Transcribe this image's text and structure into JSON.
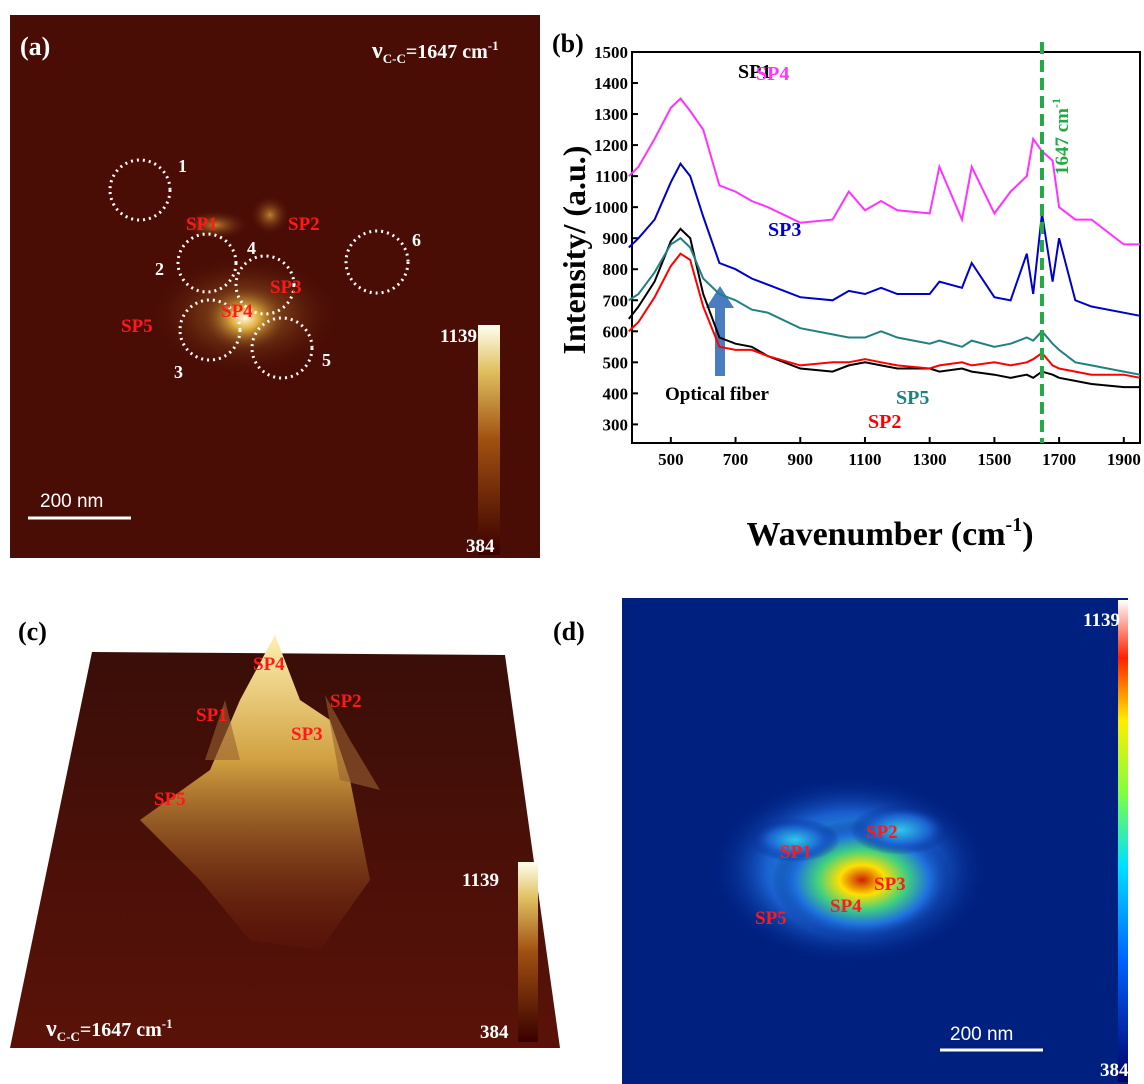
{
  "panel_a": {
    "label": "(a)",
    "annotation": {
      "symbol": "ν",
      "subscript": "C-C",
      "text": "=1647 cm",
      "superscript": "-1"
    },
    "circles": [
      "1",
      "2",
      "3",
      "4",
      "5",
      "6"
    ],
    "spots": [
      "SP1",
      "SP2",
      "SP3",
      "SP4",
      "SP5"
    ],
    "scale_bar": "200 nm",
    "colorbar": {
      "max": "1139",
      "min": "384"
    }
  },
  "chart_data": {
    "type": "line",
    "label": "(b)",
    "x_label": {
      "text": "Wavenumber (cm",
      "superscript": "-1",
      "end": ")"
    },
    "y_label": "Intensity/ (a.u.)",
    "x": [
      370,
      400,
      450,
      500,
      530,
      560,
      600,
      650,
      700,
      750,
      800,
      900,
      1000,
      1050,
      1100,
      1150,
      1200,
      1300,
      1330,
      1400,
      1430,
      1500,
      1550,
      1600,
      1620,
      1647,
      1680,
      1700,
      1750,
      1800,
      1900,
      1950
    ],
    "xlim": [
      380,
      1950
    ],
    "xticks": [
      500,
      700,
      900,
      1100,
      1300,
      1500,
      1700,
      1900
    ],
    "ylim": [
      240,
      1500
    ],
    "yticks": [
      300,
      400,
      500,
      600,
      700,
      800,
      900,
      1000,
      1100,
      1200,
      1300,
      1400,
      1500
    ],
    "series": [
      {
        "name": "SP1",
        "color": "#000000",
        "values": [
          640,
          680,
          760,
          890,
          930,
          900,
          720,
          580,
          560,
          550,
          520,
          480,
          470,
          490,
          500,
          490,
          480,
          480,
          470,
          480,
          470,
          460,
          450,
          460,
          450,
          470,
          460,
          450,
          440,
          430,
          420,
          420
        ]
      },
      {
        "name": "SP2",
        "color": "#ff0000",
        "values": [
          600,
          630,
          710,
          810,
          850,
          830,
          680,
          550,
          540,
          540,
          520,
          490,
          500,
          500,
          510,
          500,
          490,
          480,
          490,
          500,
          490,
          500,
          490,
          500,
          510,
          530,
          490,
          480,
          470,
          460,
          460,
          450
        ]
      },
      {
        "name": "SP3",
        "color": "#0000cc",
        "values": [
          870,
          900,
          960,
          1080,
          1140,
          1100,
          970,
          820,
          800,
          770,
          750,
          710,
          700,
          730,
          720,
          740,
          720,
          720,
          760,
          740,
          820,
          710,
          700,
          850,
          720,
          980,
          760,
          900,
          700,
          680,
          660,
          650
        ]
      },
      {
        "name": "SP4",
        "color": "#ff33ff",
        "values": [
          1100,
          1130,
          1220,
          1320,
          1350,
          1310,
          1250,
          1070,
          1050,
          1020,
          1000,
          950,
          960,
          1050,
          990,
          1020,
          990,
          980,
          1130,
          960,
          1130,
          980,
          1050,
          1100,
          1220,
          1180,
          1150,
          1000,
          960,
          960,
          880,
          880
        ]
      },
      {
        "name": "SP5",
        "color": "#218080",
        "values": [
          700,
          720,
          790,
          880,
          900,
          870,
          770,
          720,
          700,
          670,
          660,
          610,
          590,
          580,
          580,
          600,
          580,
          560,
          570,
          550,
          570,
          550,
          560,
          580,
          570,
          600,
          560,
          540,
          500,
          490,
          470,
          460
        ]
      }
    ],
    "reference_line": {
      "x": 1647,
      "color": "#22aa44",
      "text": "1647 cm",
      "superscript": "-1"
    },
    "annotation": "Optical fiber"
  },
  "panel_c": {
    "label": "(c)",
    "spots": [
      "SP1",
      "SP2",
      "SP3",
      "SP4",
      "SP5"
    ],
    "annotation": {
      "symbol": "ν",
      "subscript": "C-C",
      "text": "=1647 cm",
      "superscript": "-1"
    },
    "colorbar": {
      "max": "1139",
      "min": "384"
    }
  },
  "panel_d": {
    "label": "(d)",
    "spots": [
      "SP1",
      "SP2",
      "SP3",
      "SP4",
      "SP5"
    ],
    "scale_bar": "200 nm",
    "colorbar": {
      "max": "1139",
      "min": "384"
    }
  }
}
